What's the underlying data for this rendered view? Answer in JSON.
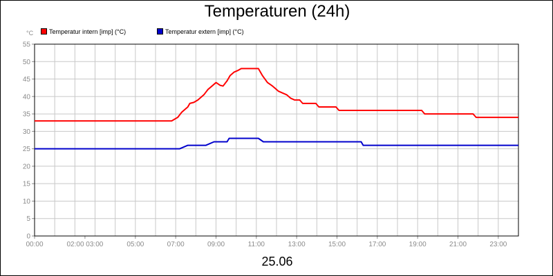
{
  "header": {
    "title": "Temperaturen (24h)"
  },
  "footer": {
    "date_label": "25.06"
  },
  "chart_data": {
    "type": "line",
    "title": "Temperaturen (24h)",
    "unit_label": "°C",
    "ylim": [
      0,
      55
    ],
    "yticks": [
      0,
      5,
      10,
      15,
      20,
      25,
      30,
      35,
      40,
      45,
      50,
      55
    ],
    "xlim": [
      0,
      24
    ],
    "xtick_labels": [
      "00:00",
      "02:00 03:00",
      "05:00",
      "07:00",
      "09:00",
      "11:00",
      "13:00",
      "15:00",
      "17:00",
      "19:00",
      "21:00",
      "23:00"
    ],
    "xtick_hours": [
      0,
      2.5,
      5,
      7,
      9,
      11,
      13,
      15,
      17,
      19,
      21,
      23
    ],
    "grid": true,
    "legend_position": "top-left",
    "series": [
      {
        "name": "Temperatur intern [imp] (°C)",
        "color": "#ff0000",
        "points": [
          [
            0,
            33
          ],
          [
            6.8,
            33
          ],
          [
            7.1,
            34
          ],
          [
            7.3,
            35.5
          ],
          [
            7.6,
            37
          ],
          [
            7.7,
            38
          ],
          [
            7.9,
            38.3
          ],
          [
            8.1,
            39
          ],
          [
            8.4,
            40.5
          ],
          [
            8.6,
            42
          ],
          [
            8.8,
            43
          ],
          [
            9.0,
            44
          ],
          [
            9.2,
            43.2
          ],
          [
            9.35,
            43
          ],
          [
            9.55,
            44.5
          ],
          [
            9.7,
            46
          ],
          [
            9.9,
            47
          ],
          [
            10.1,
            47.5
          ],
          [
            10.25,
            48
          ],
          [
            11.1,
            48
          ],
          [
            11.3,
            46
          ],
          [
            11.55,
            44
          ],
          [
            11.8,
            43
          ],
          [
            12.1,
            41.5
          ],
          [
            12.3,
            41
          ],
          [
            12.5,
            40.5
          ],
          [
            12.7,
            39.5
          ],
          [
            12.9,
            39
          ],
          [
            13.15,
            39
          ],
          [
            13.3,
            38
          ],
          [
            13.95,
            38
          ],
          [
            14.1,
            37
          ],
          [
            14.95,
            37
          ],
          [
            15.1,
            36
          ],
          [
            19.2,
            36
          ],
          [
            19.35,
            35
          ],
          [
            21.75,
            35
          ],
          [
            21.9,
            34
          ],
          [
            24,
            34
          ]
        ]
      },
      {
        "name": "Temperatur extern [imp] (°C)",
        "color": "#0000cc",
        "points": [
          [
            0,
            25
          ],
          [
            7.2,
            25
          ],
          [
            7.6,
            26
          ],
          [
            8.5,
            26
          ],
          [
            8.9,
            27
          ],
          [
            9.55,
            27
          ],
          [
            9.65,
            28
          ],
          [
            11.1,
            28
          ],
          [
            11.35,
            27
          ],
          [
            16.2,
            27
          ],
          [
            16.3,
            26
          ],
          [
            24,
            26
          ]
        ]
      }
    ]
  }
}
